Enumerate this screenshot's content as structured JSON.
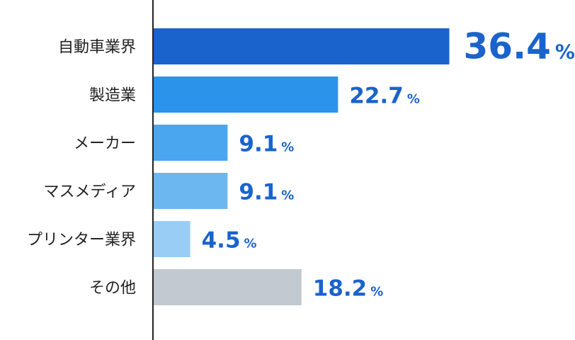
{
  "chart_data": {
    "type": "bar",
    "orientation": "horizontal",
    "categories": [
      "自動車業界",
      "製造業",
      "メーカー",
      "マスメディア",
      "プリンター業界",
      "その他"
    ],
    "values": [
      36.4,
      22.7,
      9.1,
      9.1,
      4.5,
      18.2
    ],
    "value_labels": [
      "36.4",
      "22.7",
      "9.1",
      "9.1",
      "4.5",
      "18.2"
    ],
    "unit": "%",
    "bar_colors": [
      "#1a63cc",
      "#2b93ea",
      "#4aa6ee",
      "#6db7f0",
      "#9acdf6",
      "#c2c9d1"
    ],
    "value_color": "#1a63cc",
    "axis_color": "#222222",
    "label_color": "#222222",
    "title": "",
    "xlabel": "",
    "ylabel": "",
    "grid": false,
    "legend": "none"
  }
}
